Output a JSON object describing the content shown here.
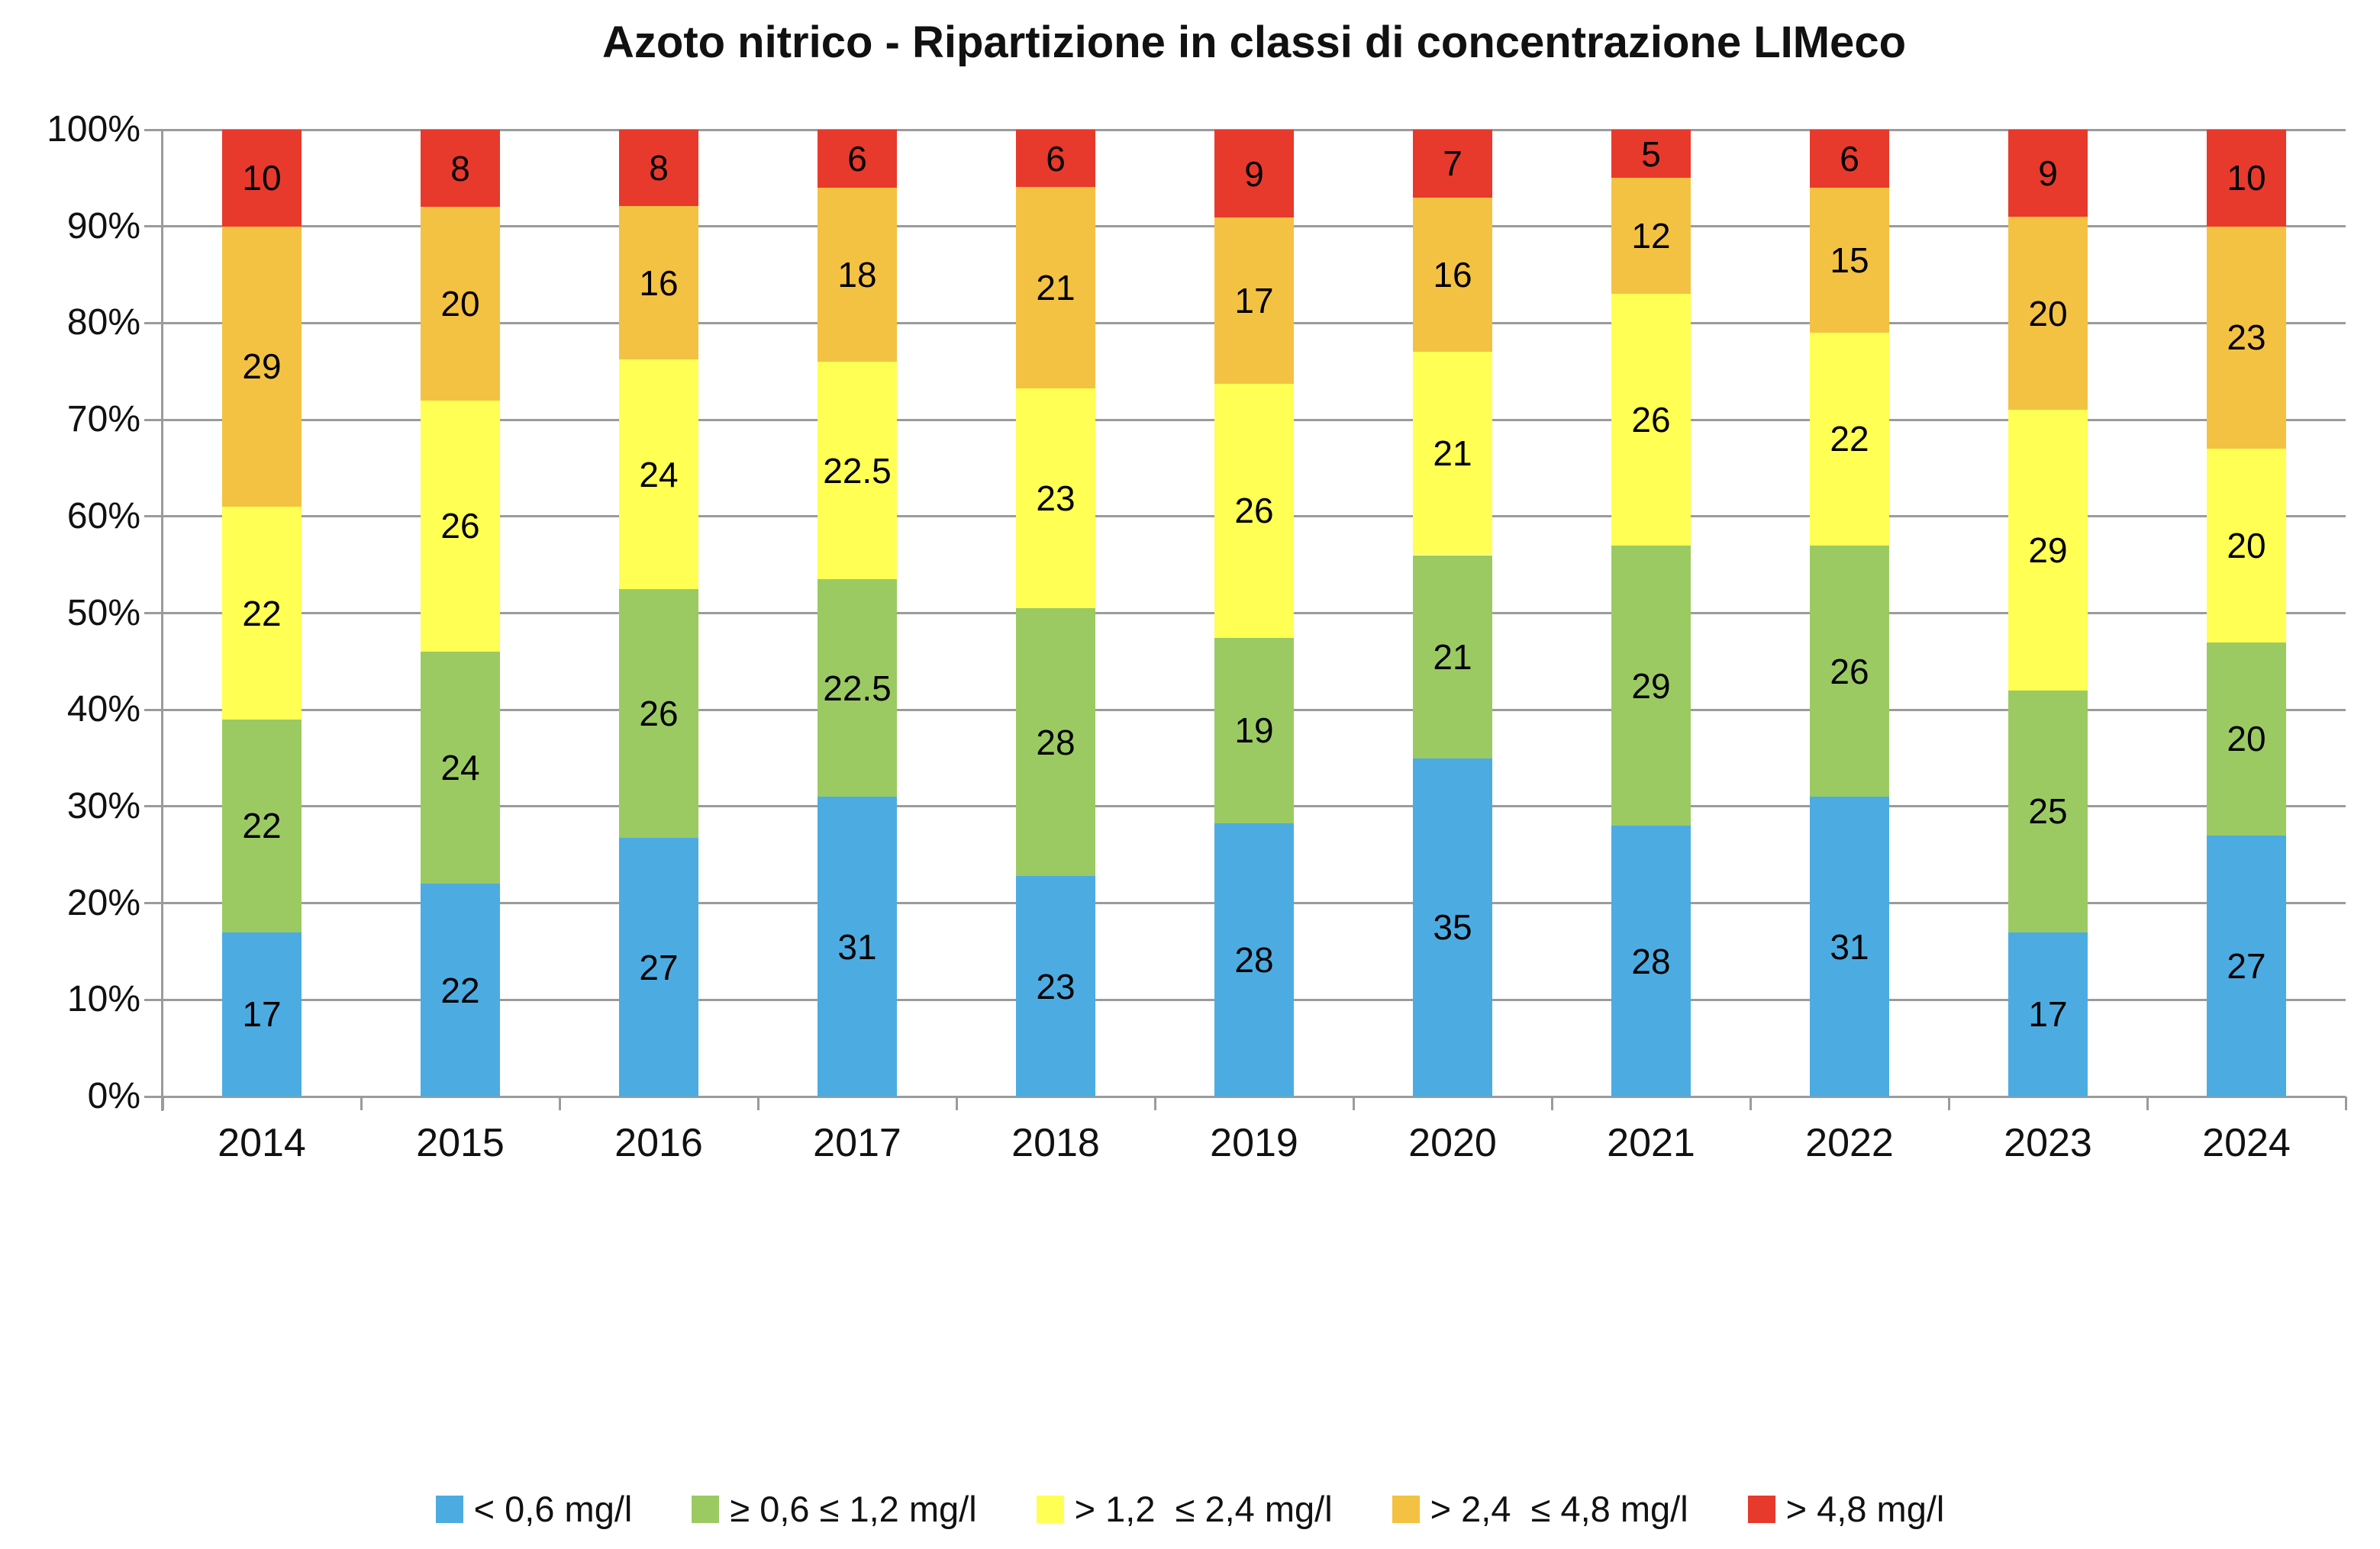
{
  "title": "Azoto nitrico - Ripartizione in classi di concentrazione LIMeco",
  "y_axis": {
    "tick_labels": [
      "100%",
      "90%",
      "80%",
      "70%",
      "60%",
      "50%",
      "40%",
      "30%",
      "20%",
      "10%",
      "0%"
    ]
  },
  "chart_data": {
    "type": "bar",
    "stacked": true,
    "percent_stacked": true,
    "title": "Azoto nitrico - Ripartizione in classi di concentrazione LIMeco",
    "xlabel": "",
    "ylabel": "",
    "ylim": [
      0,
      100
    ],
    "grid": true,
    "legend_position": "bottom",
    "value_labels": true,
    "categories": [
      "2014",
      "2015",
      "2016",
      "2017",
      "2018",
      "2019",
      "2020",
      "2021",
      "2022",
      "2023",
      "2024"
    ],
    "series": [
      {
        "name": "< 0,6 mg/l",
        "color": "#4CACE2",
        "values": [
          17,
          22,
          27,
          31,
          23,
          28,
          35,
          28,
          31,
          17,
          27
        ]
      },
      {
        "name": "≥ 0,6 ≤ 1,2 mg/l",
        "color": "#9CCA62",
        "values": [
          22,
          24,
          26,
          22.5,
          28,
          19,
          21,
          29,
          26,
          25,
          20
        ]
      },
      {
        "name": "> 1,2  ≤ 2,4 mg/l",
        "color": "#FFFF54",
        "values": [
          22,
          26,
          24,
          22.5,
          23,
          26,
          21,
          26,
          22,
          29,
          20
        ]
      },
      {
        "name": "> 2,4  ≤ 4,8 mg/l",
        "color": "#F4C242",
        "values": [
          29,
          20,
          16,
          18,
          21,
          17,
          16,
          12,
          15,
          20,
          23
        ]
      },
      {
        "name": "> 4,8 mg/l",
        "color": "#E73A2C",
        "values": [
          10,
          8,
          8,
          6,
          6,
          9,
          7,
          5,
          6,
          9,
          10
        ]
      }
    ],
    "colors": {
      "gridline": "#9b9b9b",
      "axis": "#9b9b9b",
      "label_text": "#000000"
    }
  }
}
